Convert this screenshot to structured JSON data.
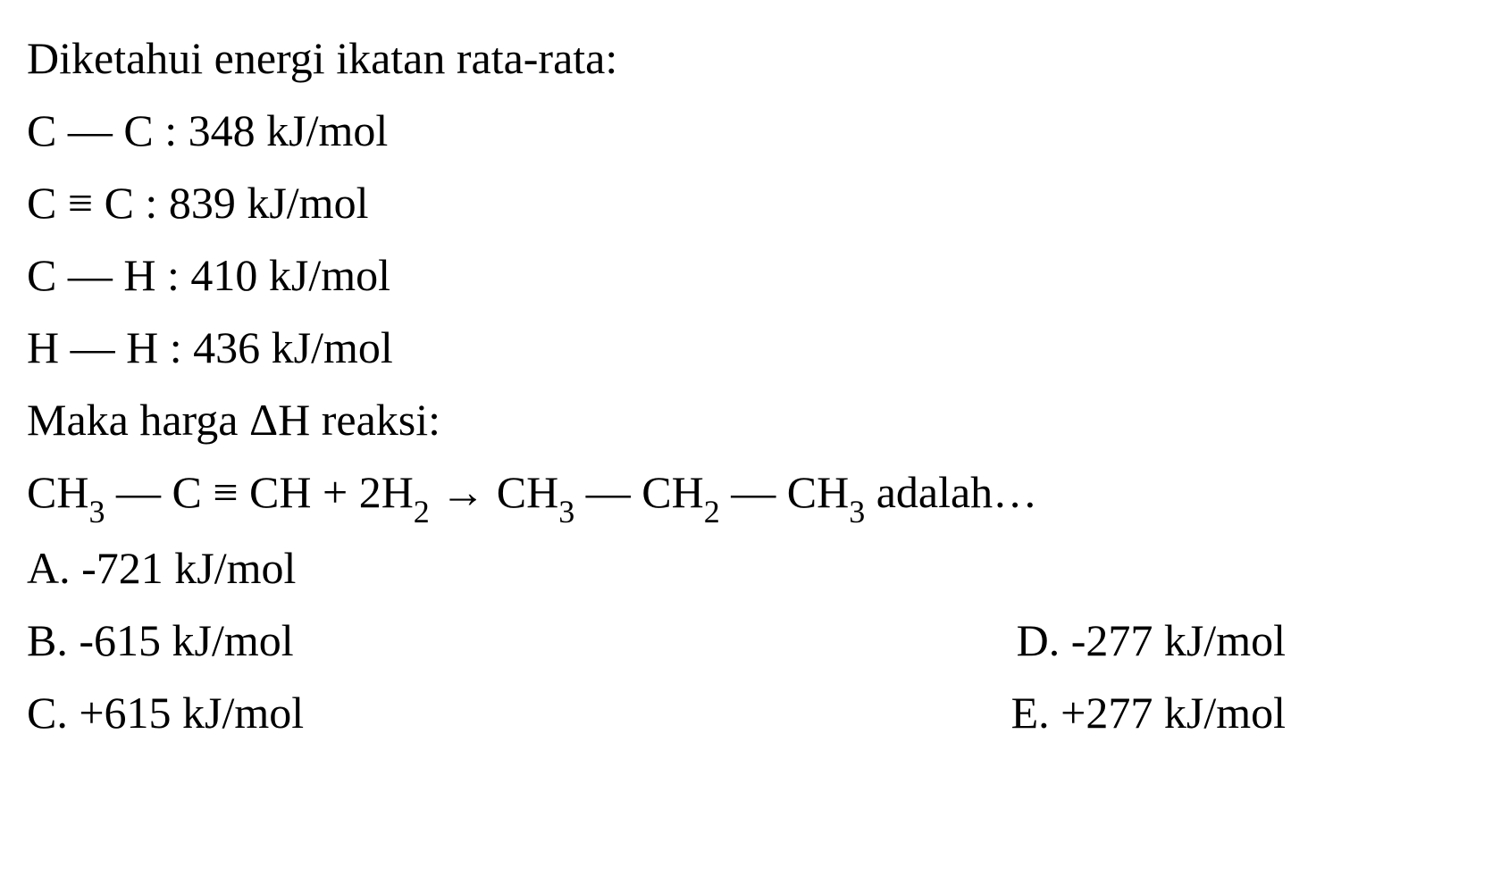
{
  "content": {
    "title": "Diketahui energi ikatan rata-rata:",
    "bonds": [
      {
        "pair": "C — C",
        "value": "348 kJ/mol"
      },
      {
        "pair_html": "C_triple_C",
        "value": "839 kJ/mol"
      },
      {
        "pair": "C — H",
        "value": "410 kJ/mol"
      },
      {
        "pair": "H — H",
        "value": "436 kJ/mol"
      }
    ],
    "question_label": "Maka harga ΔH reaksi:",
    "reaction_suffix": " adalah…",
    "options": {
      "A": "-721 kJ/mol",
      "B": "-615 kJ/mol",
      "C": "+615 kJ/mol",
      "D": "-277 kJ/mol",
      "E": "+277 kJ/mol"
    }
  },
  "styling": {
    "font_family": "Times New Roman",
    "font_size_pt": 38,
    "sub_font_size_pt": 27,
    "text_color": "#000000",
    "background_color": "#ffffff",
    "line_height": 1.62
  }
}
